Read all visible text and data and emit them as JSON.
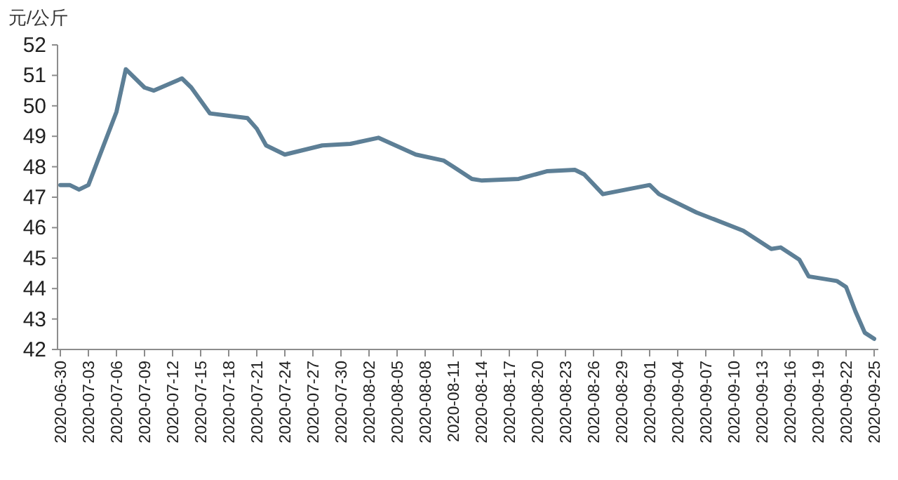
{
  "chart_data": {
    "type": "line",
    "ylabel": "元/公斤",
    "x": [
      "2020-06-30",
      "2020-07-01",
      "2020-07-02",
      "2020-07-03",
      "2020-07-06",
      "2020-07-07",
      "2020-07-09",
      "2020-07-10",
      "2020-07-13",
      "2020-07-14",
      "2020-07-16",
      "2020-07-20",
      "2020-07-21",
      "2020-07-22",
      "2020-07-24",
      "2020-07-28",
      "2020-07-31",
      "2020-08-03",
      "2020-08-07",
      "2020-08-10",
      "2020-08-11",
      "2020-08-13",
      "2020-08-14",
      "2020-08-18",
      "2020-08-21",
      "2020-08-24",
      "2020-08-25",
      "2020-08-27",
      "2020-09-01",
      "2020-09-02",
      "2020-09-06",
      "2020-09-11",
      "2020-09-14",
      "2020-09-15",
      "2020-09-17",
      "2020-09-18",
      "2020-09-21",
      "2020-09-22",
      "2020-09-23",
      "2020-09-24",
      "2020-09-25"
    ],
    "series": [
      {
        "color": "#5d7f96",
        "values": [
          47.4,
          47.4,
          47.25,
          47.4,
          49.8,
          51.2,
          50.6,
          50.5,
          50.9,
          50.6,
          49.75,
          49.6,
          49.25,
          48.7,
          48.4,
          48.7,
          48.75,
          48.95,
          48.4,
          48.2,
          48.0,
          47.6,
          47.55,
          47.6,
          47.85,
          47.9,
          47.75,
          47.1,
          47.4,
          47.1,
          46.5,
          45.9,
          45.3,
          45.35,
          44.95,
          44.4,
          44.25,
          44.05,
          43.25,
          42.55,
          42.35
        ]
      }
    ],
    "xlim": [
      "2020-06-30",
      "2020-09-25"
    ],
    "xticks": [
      "2020-06-30",
      "2020-07-03",
      "2020-07-06",
      "2020-07-09",
      "2020-07-12",
      "2020-07-15",
      "2020-07-18",
      "2020-07-21",
      "2020-07-24",
      "2020-07-27",
      "2020-07-30",
      "2020-08-02",
      "2020-08-05",
      "2020-08-08",
      "2020-08-11",
      "2020-08-14",
      "2020-08-17",
      "2020-08-20",
      "2020-08-23",
      "2020-08-26",
      "2020-08-29",
      "2020-09-01",
      "2020-09-04",
      "2020-09-07",
      "2020-09-10",
      "2020-09-13",
      "2020-09-16",
      "2020-09-19",
      "2020-09-22",
      "2020-09-25"
    ],
    "ylim": [
      42,
      52
    ],
    "yticks": [
      42,
      43,
      44,
      45,
      46,
      47,
      48,
      49,
      50,
      51,
      52
    ],
    "grid": false,
    "marker": "none",
    "line_style": "solid"
  }
}
